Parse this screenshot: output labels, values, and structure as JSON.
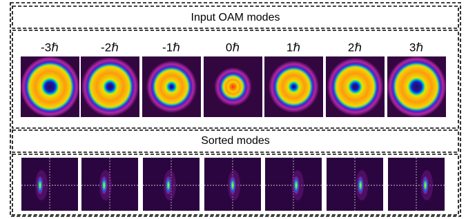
{
  "header": {
    "title": "Input OAM modes"
  },
  "modes": [
    "-3ℏ",
    "-2ℏ",
    "-1ℏ",
    "0ℏ",
    "1ℏ",
    "2ℏ",
    "3ℏ"
  ],
  "sorted": {
    "title": "Sorted modes"
  }
}
